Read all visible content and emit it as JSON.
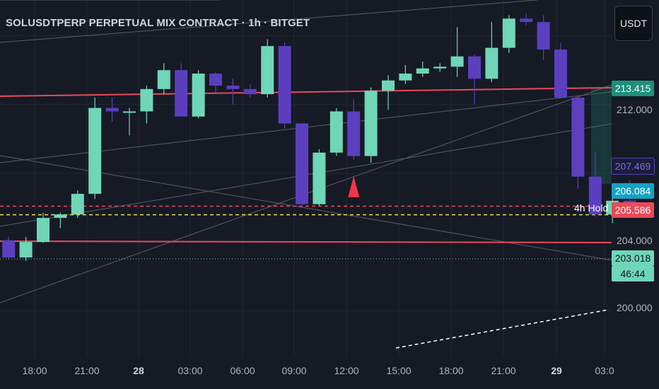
{
  "header": {
    "title": "SOLUSDTPERP PERPETUAL MIX CONTRACT · 1h · BITGET"
  },
  "currency_button": "USDT",
  "annotation": "4h Hold",
  "colors": {
    "background": "#161a25",
    "bull": "#6fd6b8",
    "bear": "#5b3fbf",
    "red_line": "#e84b5a",
    "yellow_line": "#e8e34b",
    "marker": "#f23645"
  },
  "chart_data": {
    "type": "candlestick",
    "title": "SOLUSDTPERP PERPETUAL MIX CONTRACT · 1h · BITGET",
    "x_tick_labels": [
      "18:00",
      "21:00",
      "28",
      "03:00",
      "06:00",
      "09:00",
      "12:00",
      "15:00",
      "18:00",
      "21:00",
      "29",
      "03:0"
    ],
    "y_tick_labels": [
      "212.000",
      "204.000",
      "200.000"
    ],
    "ylim": [
      197.5,
      218.0
    ],
    "price_labels": [
      {
        "text": "213.415",
        "value": 213.415,
        "bg": "#1e8f7a",
        "fg": "#ffffff"
      },
      {
        "text": "207.469",
        "value": 207.469,
        "bg": "#1b1d3a",
        "fg": "#7c6fd8",
        "border": "#5b3fbf"
      },
      {
        "text": "206.084",
        "value": 206.084,
        "bg": "#12a3c4",
        "fg": "#ffffff"
      },
      {
        "text": "205.586",
        "value": 205.586,
        "bg": "#e84b5a",
        "fg": "#ffffff"
      },
      {
        "text": "203.018",
        "value": 203.018,
        "bg": "#6fd6b8",
        "fg": "#10151e"
      },
      {
        "text": "46:44",
        "value": 202.2,
        "bg": "#6fd6b8",
        "fg": "#10151e"
      }
    ],
    "horizontal_lines": [
      {
        "value": 206.084,
        "style": "dashed",
        "color": "#e84b5a"
      },
      {
        "value": 205.586,
        "style": "dashed",
        "color": "#e8e34b"
      },
      {
        "value": 203.018,
        "style": "dotted",
        "color": "#6fd6b8"
      }
    ],
    "candles": [
      {
        "o": 204.1,
        "h": 204.3,
        "l": 203.05,
        "c": 203.1
      },
      {
        "o": 203.1,
        "h": 204.3,
        "l": 202.9,
        "c": 204.0
      },
      {
        "o": 204.0,
        "h": 205.7,
        "l": 203.95,
        "c": 205.4
      },
      {
        "o": 205.4,
        "h": 205.7,
        "l": 204.8,
        "c": 205.6
      },
      {
        "o": 205.6,
        "h": 207.0,
        "l": 205.4,
        "c": 206.8
      },
      {
        "o": 206.8,
        "h": 212.4,
        "l": 206.5,
        "c": 211.8
      },
      {
        "o": 211.8,
        "h": 212.4,
        "l": 211.0,
        "c": 211.6
      },
      {
        "o": 211.6,
        "h": 211.8,
        "l": 210.2,
        "c": 211.6
      },
      {
        "o": 211.6,
        "h": 213.1,
        "l": 210.9,
        "c": 212.9
      },
      {
        "o": 212.9,
        "h": 214.4,
        "l": 212.6,
        "c": 214.0
      },
      {
        "o": 214.0,
        "h": 214.4,
        "l": 211.3,
        "c": 211.3
      },
      {
        "o": 211.3,
        "h": 214.0,
        "l": 211.2,
        "c": 213.8
      },
      {
        "o": 213.8,
        "h": 213.9,
        "l": 212.7,
        "c": 213.1
      },
      {
        "o": 213.1,
        "h": 213.5,
        "l": 212.0,
        "c": 212.9
      },
      {
        "o": 212.9,
        "h": 213.2,
        "l": 212.4,
        "c": 212.6
      },
      {
        "o": 212.6,
        "h": 215.8,
        "l": 212.4,
        "c": 215.4
      },
      {
        "o": 215.4,
        "h": 215.6,
        "l": 210.6,
        "c": 210.9
      },
      {
        "o": 210.9,
        "h": 210.9,
        "l": 206.0,
        "c": 206.2
      },
      {
        "o": 206.2,
        "h": 209.4,
        "l": 206.1,
        "c": 209.2
      },
      {
        "o": 209.2,
        "h": 211.8,
        "l": 209.0,
        "c": 211.6
      },
      {
        "o": 211.6,
        "h": 212.3,
        "l": 208.8,
        "c": 209.0
      },
      {
        "o": 209.0,
        "h": 213.0,
        "l": 208.6,
        "c": 212.8
      },
      {
        "o": 212.8,
        "h": 213.7,
        "l": 211.7,
        "c": 213.4
      },
      {
        "o": 213.4,
        "h": 214.3,
        "l": 213.2,
        "c": 213.8
      },
      {
        "o": 213.8,
        "h": 214.5,
        "l": 213.6,
        "c": 214.1
      },
      {
        "o": 214.1,
        "h": 214.4,
        "l": 213.9,
        "c": 214.2
      },
      {
        "o": 214.2,
        "h": 216.5,
        "l": 213.6,
        "c": 214.8
      },
      {
        "o": 214.8,
        "h": 214.9,
        "l": 212.0,
        "c": 213.5
      },
      {
        "o": 213.5,
        "h": 216.8,
        "l": 213.3,
        "c": 215.3
      },
      {
        "o": 215.3,
        "h": 217.2,
        "l": 215.0,
        "c": 217.0
      },
      {
        "o": 217.0,
        "h": 217.3,
        "l": 216.6,
        "c": 216.8
      },
      {
        "o": 216.8,
        "h": 217.2,
        "l": 214.6,
        "c": 215.2
      },
      {
        "o": 215.2,
        "h": 215.6,
        "l": 212.4,
        "c": 212.4
      },
      {
        "o": 212.4,
        "h": 212.4,
        "l": 207.1,
        "c": 207.8
      },
      {
        "o": 207.8,
        "h": 209.2,
        "l": 205.5,
        "c": 205.6
      },
      {
        "o": 205.6,
        "h": 206.6,
        "l": 205.1,
        "c": 206.4
      },
      {
        "o": 206.4,
        "h": 207.6,
        "l": 205.9,
        "c": 206.1
      }
    ],
    "trend_lines": [
      {
        "p1": [
          -0.5,
          203.0
        ],
        "p2": [
          37,
          199.1
        ],
        "style": "solid"
      }
    ],
    "arrow_marker": {
      "index": 20,
      "value": 206.6,
      "direction": "up"
    }
  }
}
